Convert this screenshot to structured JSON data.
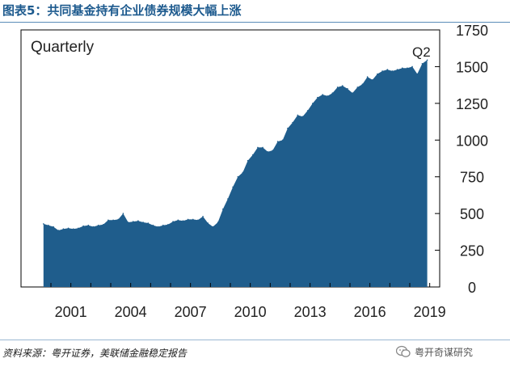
{
  "header": {
    "title": "图表5：共同基金持有企业债券规模大幅上涨"
  },
  "footer": {
    "source": "资料来源：粤开证券，美联储金融稳定报告",
    "brand": "粤开奇谋研究"
  },
  "colors": {
    "area": "#1f5d8c",
    "title": "#1d5a8e"
  },
  "chart_data": {
    "type": "area",
    "title": "",
    "annotations": [
      "Quarterly",
      "Q2"
    ],
    "xlabel": "",
    "ylabel": "",
    "x_ticks": [
      "2001",
      "2004",
      "2007",
      "2010",
      "2013",
      "2016",
      "2019"
    ],
    "y_ticks": [
      "0",
      "250",
      "500",
      "750",
      "1000",
      "1250",
      "1500",
      "1750"
    ],
    "ylim": [
      0,
      1750
    ],
    "xlim": [
      "2000-01",
      "2019-12"
    ],
    "series": [
      {
        "x": [
          "2000-Q1",
          "2000-Q2",
          "2000-Q3",
          "2000-Q4",
          "2001-Q1",
          "2001-Q2",
          "2001-Q3",
          "2001-Q4",
          "2002-Q1",
          "2002-Q2",
          "2002-Q3",
          "2002-Q4",
          "2003-Q1",
          "2003-Q2",
          "2003-Q3",
          "2003-Q4",
          "2004-Q1",
          "2004-Q2",
          "2004-Q3",
          "2004-Q4",
          "2005-Q1",
          "2005-Q2",
          "2005-Q3",
          "2005-Q4",
          "2006-Q1",
          "2006-Q2",
          "2006-Q3",
          "2006-Q4",
          "2007-Q1",
          "2007-Q2",
          "2007-Q3",
          "2007-Q4",
          "2008-Q1",
          "2008-Q2",
          "2008-Q3",
          "2008-Q4",
          "2009-Q1",
          "2009-Q2",
          "2009-Q3",
          "2009-Q4",
          "2010-Q1",
          "2010-Q2",
          "2010-Q3",
          "2010-Q4",
          "2011-Q1",
          "2011-Q2",
          "2011-Q3",
          "2011-Q4",
          "2012-Q1",
          "2012-Q2",
          "2012-Q3",
          "2012-Q4",
          "2013-Q1",
          "2013-Q2",
          "2013-Q3",
          "2013-Q4",
          "2014-Q1",
          "2014-Q2",
          "2014-Q3",
          "2014-Q4",
          "2015-Q1",
          "2015-Q2",
          "2015-Q3",
          "2015-Q4",
          "2016-Q1",
          "2016-Q2",
          "2016-Q3",
          "2016-Q4",
          "2017-Q1",
          "2017-Q2",
          "2017-Q3",
          "2017-Q4",
          "2018-Q1",
          "2018-Q2",
          "2018-Q3",
          "2018-Q4",
          "2019-Q1",
          "2019-Q2"
        ],
        "values": [
          430,
          420,
          410,
          385,
          395,
          400,
          395,
          400,
          415,
          420,
          410,
          420,
          425,
          455,
          455,
          460,
          500,
          440,
          445,
          450,
          440,
          435,
          420,
          410,
          420,
          425,
          445,
          455,
          450,
          460,
          460,
          455,
          480,
          435,
          410,
          440,
          530,
          600,
          680,
          750,
          780,
          860,
          900,
          950,
          950,
          920,
          930,
          990,
          1000,
          1080,
          1120,
          1170,
          1160,
          1200,
          1250,
          1290,
          1310,
          1300,
          1320,
          1360,
          1370,
          1350,
          1320,
          1360,
          1380,
          1430,
          1410,
          1450,
          1470,
          1480,
          1470,
          1480,
          1490,
          1490,
          1500,
          1450,
          1520,
          1545
        ]
      }
    ],
    "grid": false,
    "legend": "none"
  }
}
